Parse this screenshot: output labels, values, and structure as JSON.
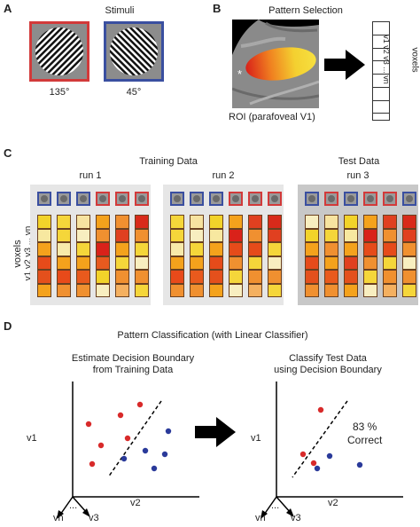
{
  "panelA": {
    "letter": "A",
    "title": "Stimuli",
    "stimuli": [
      {
        "angle_label": "135°",
        "border_color": "#d23a3a"
      },
      {
        "angle_label": "45°",
        "border_color": "#3a4fa0"
      }
    ]
  },
  "panelB": {
    "letter": "B",
    "title": "Pattern Selection",
    "roi_label": "ROI (parafoveal V1)",
    "star": "*",
    "voxels_label": "voxels",
    "voxel_vector_label": "v1 v2 v3 ... vn"
  },
  "panelC": {
    "letter": "C",
    "training_title": "Training Data",
    "test_title": "Test Data",
    "voxels_label": "voxels",
    "voxel_axis_label": "v1 v2 v3 ... vn",
    "runs": [
      {
        "label": "run 1",
        "columns": [
          {
            "stim": "blue",
            "cells": [
              "#f2d32a",
              "#f7e8a0",
              "#f4a21c",
              "#e64b1a",
              "#e4501c",
              "#f4a21c"
            ]
          },
          {
            "stim": "blue",
            "cells": [
              "#f5d63a",
              "#f5d63a",
              "#f7eaaa",
              "#f4a21c",
              "#e84a1a",
              "#f09030"
            ]
          },
          {
            "stim": "blue",
            "cells": [
              "#f7e3a0",
              "#f8eec0",
              "#f5d63a",
              "#f4a21c",
              "#e95a1d",
              "#f09030"
            ]
          },
          {
            "stim": "red",
            "cells": [
              "#f4a21c",
              "#f09030",
              "#d9221a",
              "#e85a1f",
              "#f2d32a",
              "#f8eec0"
            ]
          },
          {
            "stim": "red",
            "cells": [
              "#f09030",
              "#e04020",
              "#f4a21c",
              "#f5d63a",
              "#f09030",
              "#f4b060"
            ]
          },
          {
            "stim": "red",
            "cells": [
              "#d82a1a",
              "#f09030",
              "#f5d63a",
              "#f8eec0",
              "#f09030",
              "#f5d63a"
            ]
          }
        ]
      },
      {
        "label": "run 2",
        "columns": [
          {
            "stim": "blue",
            "cells": [
              "#f5d63a",
              "#f5d63a",
              "#f7eaaa",
              "#f4a21c",
              "#e84a1a",
              "#f09030"
            ]
          },
          {
            "stim": "blue",
            "cells": [
              "#f7e3a0",
              "#f8eec0",
              "#f5d63a",
              "#f4a21c",
              "#e95a1d",
              "#f09030"
            ]
          },
          {
            "stim": "blue",
            "cells": [
              "#f2d32a",
              "#f7e8a0",
              "#f4a21c",
              "#e64b1a",
              "#e4501c",
              "#f4a21c"
            ]
          },
          {
            "stim": "red",
            "cells": [
              "#f4a21c",
              "#d9221a",
              "#e64b1a",
              "#f09030",
              "#f5d63a",
              "#f8eec0"
            ]
          },
          {
            "stim": "red",
            "cells": [
              "#e04020",
              "#f09030",
              "#e64b1a",
              "#f5d63a",
              "#f09030",
              "#f4b060"
            ]
          },
          {
            "stim": "red",
            "cells": [
              "#d82a1a",
              "#e04020",
              "#f5d63a",
              "#f8eec0",
              "#f09030",
              "#f5d63a"
            ]
          }
        ]
      },
      {
        "label": "run 3",
        "columns": [
          {
            "stim": "blue",
            "cells": [
              "#f8eec0",
              "#f2d32a",
              "#f4a21c",
              "#e64b1a",
              "#e4501c",
              "#f09030"
            ]
          },
          {
            "stim": "red",
            "cells": [
              "#f7e3a0",
              "#f5d63a",
              "#f09030",
              "#f4a21c",
              "#e95a1d",
              "#f09030"
            ]
          },
          {
            "stim": "blue",
            "cells": [
              "#f2d32a",
              "#f7e8a0",
              "#f4a21c",
              "#e04020",
              "#e4501c",
              "#f4a21c"
            ]
          },
          {
            "stim": "red",
            "cells": [
              "#f4a21c",
              "#d9221a",
              "#e64b1a",
              "#f09030",
              "#f5d63a",
              "#f8eec0"
            ]
          },
          {
            "stim": "red",
            "cells": [
              "#e04020",
              "#f09030",
              "#e64b1a",
              "#f5d63a",
              "#f09030",
              "#f4b060"
            ]
          },
          {
            "stim": "blue",
            "cells": [
              "#d82a1a",
              "#e04020",
              "#f09030",
              "#f8eec0",
              "#f09030",
              "#f5d63a"
            ]
          }
        ]
      }
    ]
  },
  "panelD": {
    "letter": "D",
    "title": "Pattern Classification (with Linear Classifier)",
    "left_title_line1": "Estimate Decision Boundary",
    "left_title_line2": "from Training Data",
    "right_title_line1": "Classify Test Data",
    "right_title_line2": "using Decision Boundary",
    "accuracy_line1": "83 %",
    "accuracy_line2": "Correct",
    "axis_v1": "v1",
    "axis_v2": "v2",
    "axis_v3": "v3",
    "axis_vn": "vn",
    "dots_label": "...",
    "colors": {
      "red": "#d82a2a",
      "blue": "#2a3a9a"
    }
  }
}
